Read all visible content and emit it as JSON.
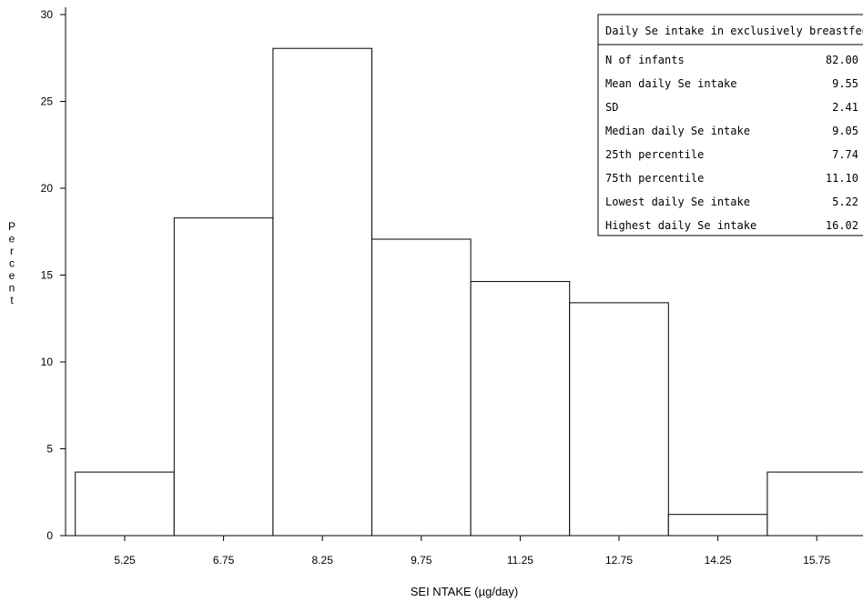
{
  "chart_data": {
    "type": "bar",
    "categories": [
      "5.25",
      "6.75",
      "8.25",
      "9.75",
      "11.25",
      "12.75",
      "14.25",
      "15.75"
    ],
    "values": [
      3.66,
      18.29,
      28.05,
      17.07,
      14.63,
      13.41,
      1.22,
      3.66
    ],
    "bin_width": 1.5,
    "xlabel": "SEI NTAKE (µg/day)",
    "ylabel": "Percent",
    "ylim": [
      0,
      30
    ],
    "yticks": [
      0,
      5,
      10,
      15,
      20,
      25,
      30
    ],
    "grid": false,
    "legend": "none",
    "bar_fill": "#ffffff",
    "bar_stroke": "#000000"
  },
  "stats_box": {
    "title": "Daily Se intake in exclusively breastfed",
    "rows": [
      {
        "label": "N of infants",
        "value": "82.00"
      },
      {
        "label": "Mean daily Se intake",
        "value": "9.55"
      },
      {
        "label": "SD",
        "value": "2.41"
      },
      {
        "label": "Median daily Se intake",
        "value": "9.05"
      },
      {
        "label": "25th percentile",
        "value": "7.74"
      },
      {
        "label": "75th percentile",
        "value": "11.10"
      },
      {
        "label": "Lowest daily Se intake",
        "value": "5.22"
      },
      {
        "label": "Highest daily Se intake",
        "value": "16.02"
      }
    ]
  }
}
